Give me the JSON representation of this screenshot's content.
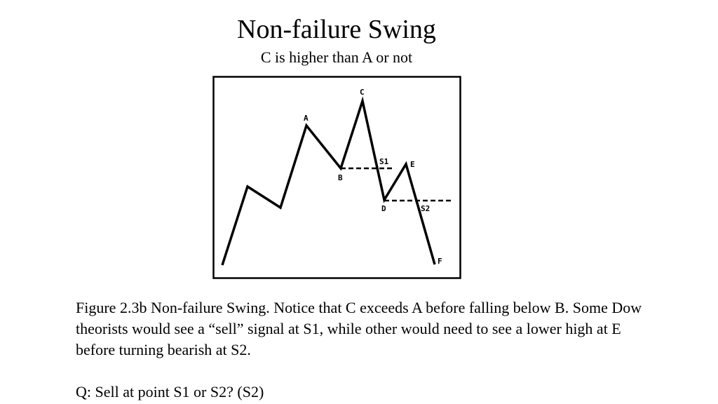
{
  "slide": {
    "title": "Non-failure Swing",
    "subtitle": "C is higher than A or not",
    "caption": "Figure 2.3b Non-failure Swing. Notice that C exceeds A before falling below B. Some Dow theorists would see a “sell” signal at S1, while other would need to see a lower high at E before turning bearish at S2.",
    "question": "Q: Sell at point S1 or S2? (S2)"
  },
  "figure": {
    "labels": {
      "A": "A",
      "B": "B",
      "C": "C",
      "D": "D",
      "E": "E",
      "F": "F",
      "S1": "S1",
      "S2": "S2"
    }
  }
}
